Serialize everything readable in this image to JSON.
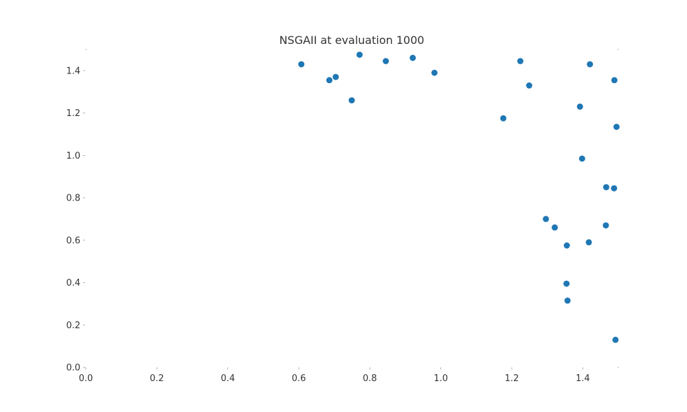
{
  "chart_data": {
    "type": "scatter",
    "title": "NSGAII at evaluation 1000",
    "xlabel": "",
    "ylabel": "",
    "xlim": [
      0.0,
      1.5
    ],
    "ylim": [
      0.0,
      1.5
    ],
    "x_ticks": [
      "0.0",
      "0.2",
      "0.4",
      "0.6",
      "0.8",
      "1.0",
      "1.2",
      "1.4"
    ],
    "y_ticks": [
      "0.0",
      "0.2",
      "0.4",
      "0.6",
      "0.8",
      "1.0",
      "1.2",
      "1.4"
    ],
    "grid": false,
    "marker_color": "#1f77b4",
    "series": [
      {
        "points": [
          [
            0.607,
            1.43
          ],
          [
            0.686,
            1.355
          ],
          [
            0.704,
            1.37
          ],
          [
            0.749,
            1.26
          ],
          [
            0.771,
            1.475
          ],
          [
            0.845,
            1.445
          ],
          [
            0.921,
            1.46
          ],
          [
            0.982,
            1.39
          ],
          [
            1.176,
            1.175
          ],
          [
            1.224,
            1.445
          ],
          [
            1.249,
            1.33
          ],
          [
            1.392,
            1.23
          ],
          [
            1.398,
            0.985
          ],
          [
            1.42,
            1.43
          ],
          [
            1.489,
            1.355
          ],
          [
            1.495,
            1.135
          ],
          [
            1.466,
            0.85
          ],
          [
            1.488,
            0.845
          ],
          [
            1.296,
            0.7
          ],
          [
            1.321,
            0.66
          ],
          [
            1.355,
            0.575
          ],
          [
            1.417,
            0.59
          ],
          [
            1.465,
            0.67
          ],
          [
            1.354,
            0.395
          ],
          [
            1.357,
            0.315
          ],
          [
            1.492,
            0.13
          ]
        ]
      }
    ]
  }
}
